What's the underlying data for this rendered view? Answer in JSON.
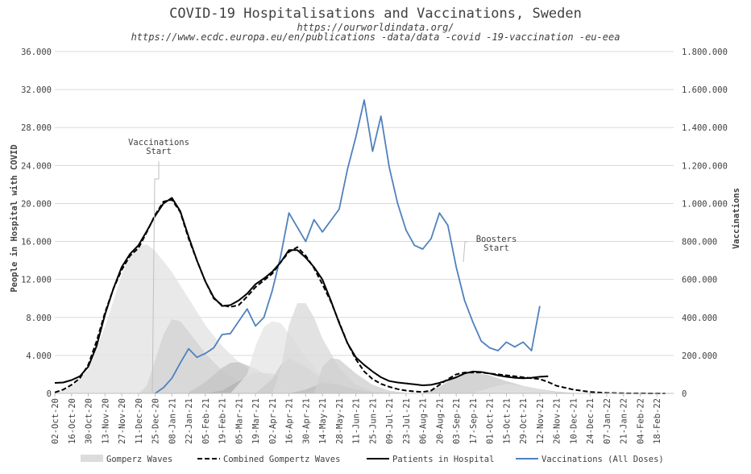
{
  "chart_data": {
    "type": "area",
    "title": "COVID-19 Hospitalisations and Vaccinations, Sweden",
    "sources": [
      "https://ourworldindata.org/",
      "https://www.ecdc.europa.eu/en/publications -data/data -covid -19-vaccination -eu-eea"
    ],
    "ylabel_left": "People in Hospital with COVID",
    "ylabel_right": "Vaccinations",
    "ylim_left": [
      0,
      36000
    ],
    "ylim_right": [
      0,
      1800000
    ],
    "yticks_left": [
      "0",
      "4.000",
      "8.000",
      "12.000",
      "16.000",
      "20.000",
      "24.000",
      "28.000",
      "32.000",
      "36.000"
    ],
    "yticks_right": [
      "0",
      "200.000",
      "400.000",
      "600.000",
      "800.000",
      "1.000.000",
      "1.200.000",
      "1.400.000",
      "1.600.000",
      "1.800.000"
    ],
    "x_tick_labels": [
      "02-Oct-20",
      "16-Oct-20",
      "30-Oct-20",
      "13-Nov-20",
      "27-Nov-20",
      "11-Dec-20",
      "25-Dec-20",
      "08-Jan-21",
      "22-Jan-21",
      "05-Feb-21",
      "19-Feb-21",
      "05-Mar-21",
      "19-Mar-21",
      "02-Apr-21",
      "16-Apr-21",
      "30-Apr-21",
      "14-May-21",
      "28-May-21",
      "11-Jun-21",
      "25-Jun-21",
      "09-Jul-21",
      "23-Jul-21",
      "06-Aug-21",
      "20-Aug-21",
      "03-Sep-21",
      "17-Sep-21",
      "01-Oct-21",
      "15-Oct-21",
      "29-Oct-21",
      "12-Nov-21",
      "26-Nov-21",
      "10-Dec-21",
      "24-Dec-21",
      "07-Jan-22",
      "21-Jan-22",
      "04-Feb-22",
      "18-Feb-22"
    ],
    "annotations": [
      {
        "text": [
          "Vaccinations",
          "Start"
        ],
        "x": "25-Dec-20"
      },
      {
        "text": [
          "Boosters",
          "Start"
        ],
        "x": "10-Sep-21"
      }
    ],
    "legend": {
      "position": "bottom"
    },
    "series": [
      {
        "name": "Gomperz Waves",
        "axis": "left",
        "kind": "area",
        "colors": [
          "#e3e3e3",
          "#d4d4d4",
          "#c4c4c4",
          "#b4b4b4",
          "#e6e6e6",
          "#cccccc",
          "#dadada",
          "#bdbdbd",
          "#d0d0d0",
          "#c8c8c8",
          "#e0e0e0"
        ],
        "waves": [
          {
            "x": [
              "02-Oct-20",
              "16-Oct-20",
              "30-Oct-20",
              "13-Nov-20",
              "27-Nov-20",
              "04-Dec-20",
              "11-Dec-20",
              "18-Dec-20",
              "25-Dec-20",
              "08-Jan-21",
              "22-Jan-21",
              "05-Feb-21",
              "19-Feb-21",
              "05-Mar-21",
              "19-Mar-21",
              "02-Apr-21",
              "16-Apr-21",
              "30-Apr-21",
              "14-May-21"
            ],
            "y": [
              100,
              700,
              2500,
              7000,
              12500,
              14500,
              15500,
              15700,
              15000,
              12800,
              10000,
              7200,
              5000,
              3300,
              2100,
              1300,
              800,
              450,
              200
            ]
          },
          {
            "x": [
              "11-Dec-20",
              "18-Dec-20",
              "25-Dec-20",
              "01-Jan-21",
              "08-Jan-21",
              "15-Jan-21",
              "22-Jan-21",
              "05-Feb-21",
              "19-Feb-21",
              "05-Mar-21",
              "19-Mar-21",
              "02-Apr-21",
              "16-Apr-21"
            ],
            "y": [
              0,
              800,
              3500,
              6200,
              7800,
              7600,
              6500,
              4200,
              2400,
              1300,
              600,
              250,
              80
            ]
          },
          {
            "x": [
              "22-Jan-21",
              "05-Feb-21",
              "19-Feb-21",
              "26-Feb-21",
              "05-Mar-21",
              "19-Mar-21",
              "02-Apr-21",
              "16-Apr-21",
              "30-Apr-21",
              "14-May-21"
            ],
            "y": [
              100,
              1200,
              2700,
              3200,
              3300,
              2600,
              1600,
              800,
              350,
              100
            ]
          },
          {
            "x": [
              "05-Feb-21",
              "19-Feb-21",
              "05-Mar-21",
              "19-Mar-21",
              "02-Apr-21",
              "16-Apr-21",
              "30-Apr-21",
              "14-May-21",
              "28-May-21"
            ],
            "y": [
              0,
              300,
              1300,
              2200,
              2100,
              1400,
              800,
              350,
              100
            ]
          },
          {
            "x": [
              "26-Feb-21",
              "12-Mar-21",
              "19-Mar-21",
              "26-Mar-21",
              "02-Apr-21",
              "09-Apr-21",
              "16-Apr-21",
              "30-Apr-21",
              "14-May-21",
              "28-May-21",
              "11-Jun-21"
            ],
            "y": [
              0,
              2000,
              5000,
              7000,
              7600,
              7400,
              6300,
              3800,
              1800,
              700,
              150
            ]
          },
          {
            "x": [
              "19-Mar-21",
              "02-Apr-21",
              "09-Apr-21",
              "16-Apr-21",
              "30-Apr-21",
              "14-May-21",
              "28-May-21",
              "11-Jun-21",
              "25-Jun-21"
            ],
            "y": [
              0,
              1500,
              3000,
              3700,
              2800,
              1500,
              700,
              250,
              50
            ]
          },
          {
            "x": [
              "02-Apr-21",
              "09-Apr-21",
              "16-Apr-21",
              "23-Apr-21",
              "30-Apr-21",
              "07-May-21",
              "14-May-21",
              "28-May-21",
              "11-Jun-21",
              "25-Jun-21",
              "09-Jul-21"
            ],
            "y": [
              0,
              2500,
              7200,
              9500,
              9500,
              8000,
              5800,
              2700,
              900,
              250,
              50
            ]
          },
          {
            "x": [
              "16-Apr-21",
              "30-Apr-21",
              "14-May-21",
              "28-May-21",
              "11-Jun-21",
              "25-Jun-21"
            ],
            "y": [
              0,
              400,
              1100,
              900,
              400,
              100
            ]
          },
          {
            "x": [
              "07-May-21",
              "14-May-21",
              "21-May-21",
              "28-May-21",
              "11-Jun-21",
              "25-Jun-21",
              "09-Jul-21",
              "23-Jul-21"
            ],
            "y": [
              0,
              2800,
              3700,
              3600,
              2100,
              900,
              300,
              50
            ]
          },
          {
            "x": [
              "06-Aug-21",
              "20-Aug-21",
              "03-Sep-21",
              "17-Sep-21",
              "01-Oct-21",
              "15-Oct-21",
              "29-Oct-21",
              "12-Nov-21",
              "26-Nov-21",
              "10-Dec-21"
            ],
            "y": [
              0,
              700,
              1800,
              2200,
              1900,
              1300,
              800,
              450,
              200,
              50
            ]
          },
          {
            "x": [
              "17-Sep-21",
              "01-Oct-21",
              "15-Oct-21",
              "29-Oct-21",
              "12-Nov-21",
              "26-Nov-21"
            ],
            "y": [
              0,
              600,
              1000,
              800,
              400,
              100
            ]
          }
        ]
      },
      {
        "name": "Combined Gompertz Waves",
        "axis": "left",
        "kind": "line",
        "dash": true,
        "x": [
          "02-Oct-20",
          "09-Oct-20",
          "16-Oct-20",
          "23-Oct-20",
          "30-Oct-20",
          "06-Nov-20",
          "13-Nov-20",
          "20-Nov-20",
          "27-Nov-20",
          "04-Dec-20",
          "11-Dec-20",
          "18-Dec-20",
          "25-Dec-20",
          "01-Jan-21",
          "08-Jan-21",
          "15-Jan-21",
          "22-Jan-21",
          "29-Jan-21",
          "05-Feb-21",
          "12-Feb-21",
          "19-Feb-21",
          "26-Feb-21",
          "05-Mar-21",
          "12-Mar-21",
          "19-Mar-21",
          "26-Mar-21",
          "02-Apr-21",
          "09-Apr-21",
          "16-Apr-21",
          "23-Apr-21",
          "30-Apr-21",
          "07-May-21",
          "14-May-21",
          "21-May-21",
          "28-May-21",
          "04-Jun-21",
          "11-Jun-21",
          "18-Jun-21",
          "25-Jun-21",
          "02-Jul-21",
          "09-Jul-21",
          "16-Jul-21",
          "23-Jul-21",
          "30-Jul-21",
          "06-Aug-21",
          "13-Aug-21",
          "20-Aug-21",
          "27-Aug-21",
          "03-Sep-21",
          "10-Sep-21",
          "17-Sep-21",
          "24-Sep-21",
          "01-Oct-21",
          "08-Oct-21",
          "15-Oct-21",
          "22-Oct-21",
          "29-Oct-21",
          "05-Nov-21",
          "12-Nov-21",
          "19-Nov-21",
          "26-Nov-21",
          "10-Dec-21",
          "24-Dec-21",
          "07-Jan-22",
          "21-Jan-22",
          "04-Feb-22",
          "18-Feb-22",
          "25-Feb-22"
        ],
        "y": [
          100,
          400,
          900,
          1600,
          3000,
          5500,
          8500,
          11000,
          13000,
          14500,
          15300,
          17000,
          18800,
          20200,
          20400,
          19100,
          16300,
          14000,
          11800,
          10000,
          9300,
          9100,
          9300,
          10200,
          11200,
          11900,
          12600,
          13800,
          14900,
          15400,
          14500,
          13200,
          11500,
          9700,
          7500,
          5300,
          3600,
          2300,
          1500,
          1000,
          700,
          450,
          300,
          200,
          150,
          300,
          900,
          1500,
          2000,
          2200,
          2200,
          2200,
          2100,
          2000,
          1900,
          1800,
          1700,
          1600,
          1500,
          1200,
          800,
          400,
          150,
          50,
          20,
          5,
          0,
          0
        ]
      },
      {
        "name": "Patients in Hospital",
        "axis": "left",
        "kind": "line",
        "x": [
          "02-Oct-20",
          "09-Oct-20",
          "16-Oct-20",
          "23-Oct-20",
          "30-Oct-20",
          "06-Nov-20",
          "13-Nov-20",
          "20-Nov-20",
          "27-Nov-20",
          "04-Dec-20",
          "11-Dec-20",
          "18-Dec-20",
          "25-Dec-20",
          "01-Jan-21",
          "08-Jan-21",
          "15-Jan-21",
          "22-Jan-21",
          "29-Jan-21",
          "05-Feb-21",
          "12-Feb-21",
          "19-Feb-21",
          "26-Feb-21",
          "05-Mar-21",
          "12-Mar-21",
          "19-Mar-21",
          "26-Mar-21",
          "02-Apr-21",
          "09-Apr-21",
          "16-Apr-21",
          "23-Apr-21",
          "30-Apr-21",
          "07-May-21",
          "14-May-21",
          "21-May-21",
          "28-May-21",
          "04-Jun-21",
          "11-Jun-21",
          "18-Jun-21",
          "25-Jun-21",
          "02-Jul-21",
          "09-Jul-21",
          "16-Jul-21",
          "23-Jul-21",
          "30-Jul-21",
          "06-Aug-21",
          "13-Aug-21",
          "20-Aug-21",
          "27-Aug-21",
          "03-Sep-21",
          "10-Sep-21",
          "17-Sep-21",
          "24-Sep-21",
          "01-Oct-21",
          "08-Oct-21",
          "15-Oct-21",
          "22-Oct-21",
          "29-Oct-21",
          "05-Nov-21",
          "12-Nov-21",
          "19-Nov-21"
        ],
        "y": [
          1100,
          1150,
          1400,
          1800,
          2800,
          5000,
          8300,
          11000,
          13300,
          14700,
          15600,
          17100,
          18700,
          20000,
          20600,
          19200,
          16500,
          14000,
          11800,
          10100,
          9200,
          9300,
          9800,
          10500,
          11500,
          12100,
          12800,
          13800,
          15100,
          15100,
          14300,
          13300,
          12000,
          9800,
          7400,
          5300,
          3800,
          3000,
          2300,
          1700,
          1300,
          1150,
          1050,
          950,
          850,
          900,
          1100,
          1400,
          1700,
          2100,
          2300,
          2250,
          2100,
          1900,
          1750,
          1650,
          1600,
          1650,
          1750,
          1800
        ]
      },
      {
        "name": "Vaccinations (All Doses)",
        "axis": "right",
        "kind": "line",
        "color": "#4f81bd",
        "x": [
          "25-Dec-20",
          "01-Jan-21",
          "08-Jan-21",
          "15-Jan-21",
          "22-Jan-21",
          "29-Jan-21",
          "05-Feb-21",
          "12-Feb-21",
          "19-Feb-21",
          "26-Feb-21",
          "05-Mar-21",
          "12-Mar-21",
          "19-Mar-21",
          "26-Mar-21",
          "02-Apr-21",
          "09-Apr-21",
          "16-Apr-21",
          "23-Apr-21",
          "30-Apr-21",
          "07-May-21",
          "14-May-21",
          "21-May-21",
          "28-May-21",
          "04-Jun-21",
          "11-Jun-21",
          "18-Jun-21",
          "25-Jun-21",
          "02-Jul-21",
          "09-Jul-21",
          "16-Jul-21",
          "23-Jul-21",
          "30-Jul-21",
          "06-Aug-21",
          "13-Aug-21",
          "20-Aug-21",
          "27-Aug-21",
          "03-Sep-21",
          "10-Sep-21",
          "17-Sep-21",
          "24-Sep-21",
          "01-Oct-21",
          "08-Oct-21",
          "15-Oct-21",
          "22-Oct-21",
          "29-Oct-21",
          "05-Nov-21",
          "12-Nov-21"
        ],
        "y": [
          0,
          30000,
          80000,
          160000,
          235000,
          190000,
          210000,
          240000,
          310000,
          315000,
          380000,
          445000,
          355000,
          400000,
          540000,
          720000,
          950000,
          875000,
          800000,
          915000,
          850000,
          910000,
          970000,
          1180000,
          1350000,
          1545000,
          1275000,
          1460000,
          1190000,
          1000000,
          860000,
          780000,
          760000,
          815000,
          950000,
          885000,
          665000,
          490000,
          375000,
          275000,
          240000,
          225000,
          270000,
          245000,
          270000,
          225000,
          460000
        ]
      }
    ]
  }
}
